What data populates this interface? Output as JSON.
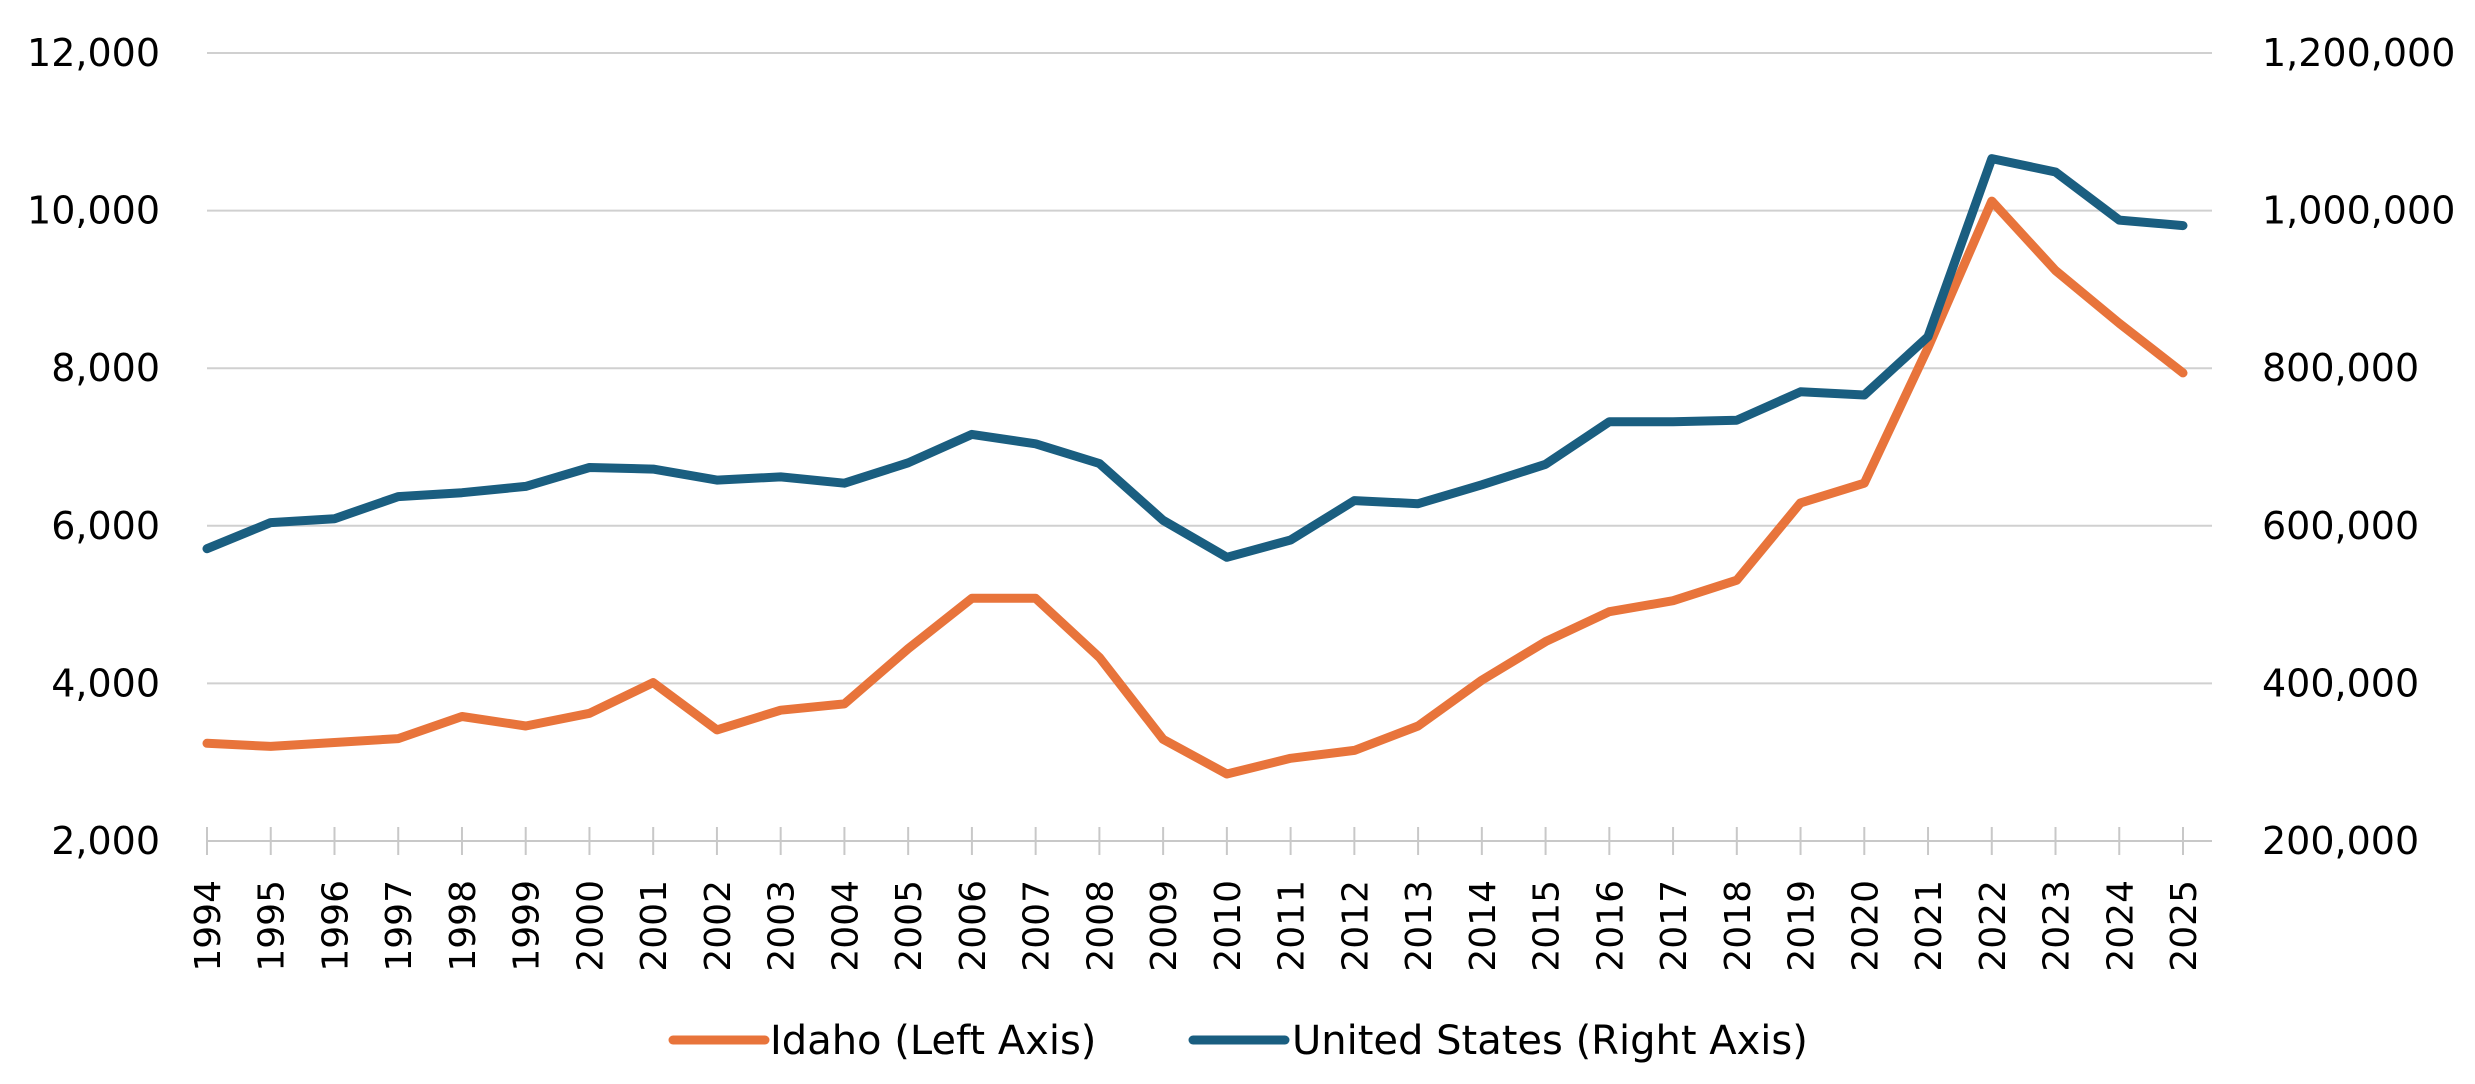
{
  "chart_data": {
    "type": "line",
    "title": "",
    "xlabel": "",
    "ylabel": "",
    "x": [
      "1994",
      "1995",
      "1996",
      "1997",
      "1998",
      "1999",
      "2000",
      "2001",
      "2002",
      "2003",
      "2004",
      "2005",
      "2006",
      "2007",
      "2008",
      "2009",
      "2010",
      "2011",
      "2012",
      "2013",
      "2014",
      "2015",
      "2016",
      "2017",
      "2018",
      "2019",
      "2020",
      "2021",
      "2022",
      "2023",
      "2024",
      "2025"
    ],
    "left_axis": {
      "ylim": [
        2000,
        12000
      ],
      "ticks": [
        "2,000",
        "4,000",
        "6,000",
        "8,000",
        "10,000",
        "12,000"
      ],
      "tick_values": [
        2000,
        4000,
        6000,
        8000,
        10000,
        12000
      ]
    },
    "right_axis": {
      "ylim": [
        200000,
        1200000
      ],
      "ticks": [
        "200,000",
        "400,000",
        "600,000",
        "800,000",
        "1,000,000",
        "1,200,000"
      ],
      "tick_values": [
        200000,
        400000,
        600000,
        800000,
        1000000,
        1200000
      ]
    },
    "grid": true,
    "legend_position": "bottom",
    "series": [
      {
        "name": "Idaho (Left Axis)",
        "axis": "left",
        "color": "#E8743B",
        "values": [
          3240,
          3200,
          3250,
          3300,
          3580,
          3460,
          3620,
          4010,
          3410,
          3660,
          3740,
          4440,
          5080,
          5080,
          4330,
          3290,
          2850,
          3050,
          3150,
          3460,
          4040,
          4530,
          4910,
          5050,
          5310,
          6290,
          6540,
          8260,
          10120,
          9240,
          8570,
          7940
        ]
      },
      {
        "name": "United States (Right Axis)",
        "axis": "right",
        "color": "#1A5E80",
        "values": [
          571000,
          604000,
          609000,
          637000,
          642000,
          650000,
          674000,
          672000,
          658000,
          662000,
          654000,
          680000,
          716000,
          704000,
          679000,
          607000,
          560000,
          582000,
          632000,
          628000,
          652000,
          678000,
          732000,
          732000,
          734000,
          770000,
          766000,
          840000,
          1066000,
          1049000,
          988000,
          981000
        ]
      }
    ]
  }
}
